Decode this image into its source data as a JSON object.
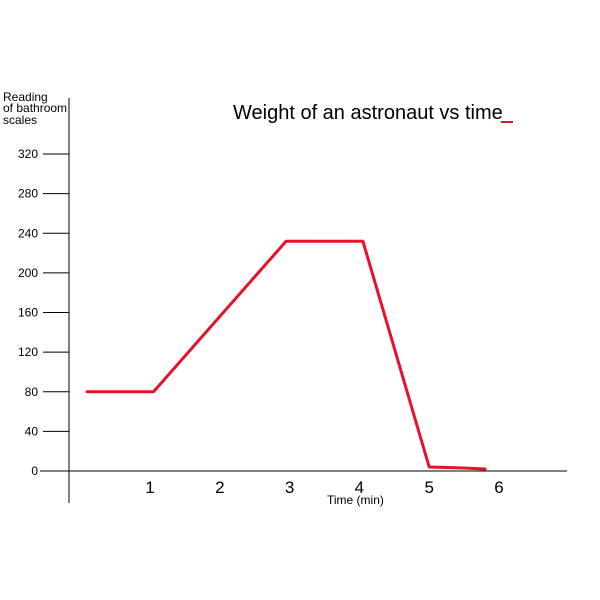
{
  "chart_data": {
    "type": "line",
    "title": "Weight of an astronaut vs time",
    "xlabel": "Time (min)",
    "ylabel_lines": [
      "Reading",
      "of bathroom",
      "scales"
    ],
    "yticks": [
      0,
      40,
      80,
      120,
      160,
      200,
      240,
      280,
      320
    ],
    "xticks": [
      1,
      2,
      3,
      4,
      5,
      6
    ],
    "xlim": [
      0,
      7
    ],
    "ylim": [
      0,
      360
    ],
    "legend": "top-right",
    "grid": false,
    "series": [
      {
        "name": "",
        "color": "#e8112d",
        "x": [
          0.1,
          1.05,
          2.95,
          4.05,
          5.0,
          5.5,
          5.8
        ],
        "y": [
          80,
          80,
          232,
          232,
          4,
          3,
          2
        ]
      }
    ]
  }
}
